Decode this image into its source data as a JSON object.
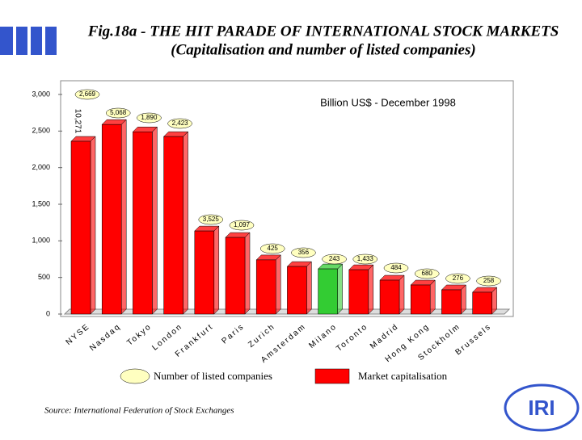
{
  "chart_data": {
    "type": "bar3d",
    "title": "Fig.18a - THE HIT PARADE OF INTERNATIONAL STOCK MARKETS",
    "subtitle": "(Capitalisation and number of listed companies)",
    "unit_label": "Billion US$ - December 1998",
    "source": "Source: International Federation of Stock Exchanges",
    "logo": "IRI",
    "categories": [
      "NYSE",
      "Nasdaq",
      "Tokyo",
      "London",
      "Frankfurt",
      "Paris",
      "Zurich",
      "Amsterdam",
      "Milano",
      "Toronto",
      "Madrid",
      "Hong Kong",
      "Stockholm",
      "Brussels"
    ],
    "series": [
      {
        "name": "Market capitalisation",
        "color": "#ff0000",
        "colors": [
          "#ff0000",
          "#ff0000",
          "#ff0000",
          "#ff0000",
          "#ff0000",
          "#ff0000",
          "#ff0000",
          "#ff0000",
          "#33cc33",
          "#ff0000",
          "#ff0000",
          "#ff0000",
          "#ff0000",
          "#ff0000"
        ],
        "values": [
          2360,
          2590,
          2490,
          2425,
          1135,
          1047,
          740,
          650,
          617,
          606,
          463,
          397,
          331,
          298
        ]
      },
      {
        "name": "Number of listed companies",
        "color": "#ffffc0",
        "values": [
          2669,
          5068,
          1890,
          2423,
          3525,
          1097,
          425,
          356,
          243,
          1433,
          484,
          680,
          276,
          258
        ],
        "value_labels": [
          "2,669",
          "5,068",
          "1,890",
          "2,423",
          "3,525",
          "1,097",
          "425",
          "356",
          "243",
          "1,433",
          "484",
          "680",
          "276",
          "258"
        ]
      }
    ],
    "annotation": "10,271",
    "ylim": [
      0,
      3000
    ],
    "yticks": [
      0,
      500,
      {
        "value": 1000,
        "label": "1,000"
      },
      {
        "value": 1500,
        "label": "1,500"
      },
      {
        "value": 2000,
        "label": "2,000"
      },
      {
        "value": 2500,
        "label": "2,500"
      },
      {
        "value": 3000,
        "label": "3,000"
      }
    ]
  }
}
